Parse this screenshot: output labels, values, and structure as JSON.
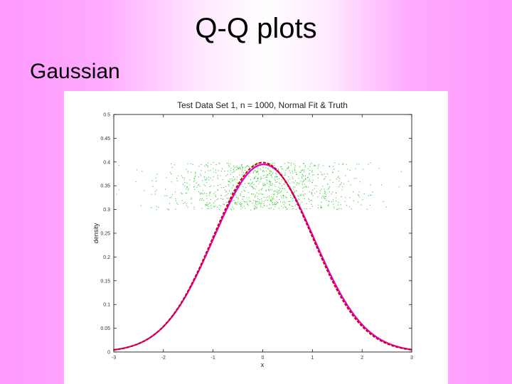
{
  "slide": {
    "title": "Q-Q plots",
    "subtitle": "Gaussian"
  },
  "chart_data": {
    "type": "line",
    "title": "Test Data Set 1, n = 1000, Normal Fit & Truth",
    "xlabel": "x",
    "ylabel": "density",
    "xlim": [
      -3,
      3
    ],
    "ylim": [
      0,
      0.5
    ],
    "xticks": [
      -3,
      -2,
      -1,
      0,
      1,
      2,
      3
    ],
    "yticks": [
      0,
      0.05,
      0.1,
      0.15,
      0.2,
      0.25,
      0.3,
      0.35,
      0.4,
      0.45,
      0.5
    ],
    "grid": false,
    "series": [
      {
        "style": "solid",
        "color": "#dd00cc",
        "mean": 0.02,
        "sd": 1.01
      },
      {
        "style": "dashed",
        "color": "#cc0000",
        "mean": 0,
        "sd": 1
      }
    ],
    "scatter": {
      "color": "#33cc33",
      "n": 1000,
      "x_range": [
        -3,
        3
      ],
      "y_jitter_range": [
        0.3,
        0.4
      ]
    }
  }
}
